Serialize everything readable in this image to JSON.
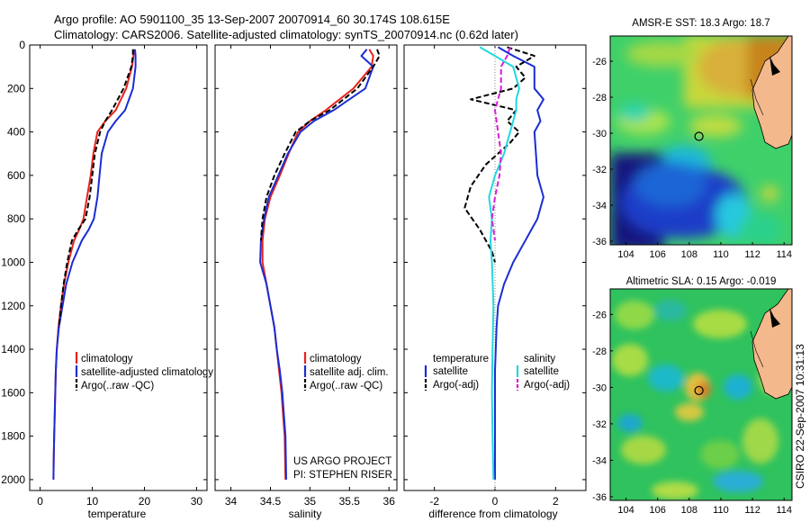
{
  "title_line1": "Argo profile: AO 5901100_35 13-Sep-2007 20070914_60 30.174S 108.615E",
  "title_line2": "Climatology: CARS2006. Satellite-adjusted climatology: synTS_20070914.nc (0.62d later)",
  "side_label": "CSIRO 22-Sep-2007 10:31:13",
  "credit_line1": "US ARGO PROJECT",
  "credit_line2": "PI: STEPHEN RISER",
  "colors": {
    "climatology": "#e8231c",
    "satellite": "#1a2dd4",
    "argo": "#000000",
    "satellite_sal": "#22d8df",
    "argo_sal_adj": "#d61fd6"
  },
  "chart_data": [
    {
      "type": "line",
      "panel": "temperature",
      "xlabel": "temperature",
      "ylabel": "",
      "xlim": [
        -2,
        32
      ],
      "ylim": [
        2050,
        0
      ],
      "xticks": [
        0,
        10,
        20,
        30
      ],
      "yticks": [
        0,
        200,
        400,
        600,
        800,
        1000,
        1200,
        1400,
        1600,
        1800,
        2000
      ],
      "legend": [
        "climatology",
        "satellite-adjusted climatology",
        "Argo(..raw -QC)"
      ],
      "series": [
        {
          "name": "climatology",
          "style": "solid",
          "color": "#e8231c",
          "x": [
            18.0,
            17.9,
            17.6,
            16.5,
            14.5,
            12.5,
            11.0,
            10.2,
            9.7,
            9.0,
            8.3,
            7.5,
            6.5,
            5.4,
            4.6,
            4.0,
            3.5,
            3.2,
            3.0,
            2.9,
            2.8,
            2.7,
            2.6,
            2.55
          ],
          "y": [
            20,
            50,
            100,
            200,
            300,
            350,
            400,
            500,
            600,
            700,
            800,
            850,
            900,
            1000,
            1100,
            1200,
            1300,
            1400,
            1500,
            1600,
            1700,
            1800,
            1900,
            2000
          ]
        },
        {
          "name": "satellite-adjusted climatology",
          "style": "solid",
          "color": "#1a2dd4",
          "x": [
            18.2,
            18.3,
            18.3,
            17.8,
            16.3,
            14.5,
            13.0,
            11.8,
            11.4,
            11.0,
            10.3,
            9.3,
            8.0,
            6.2,
            5.0,
            4.3,
            3.6,
            3.2,
            3.0,
            2.9,
            2.8,
            2.7,
            2.6,
            2.55
          ],
          "y": [
            20,
            50,
            100,
            200,
            300,
            350,
            400,
            500,
            600,
            700,
            800,
            850,
            900,
            1000,
            1100,
            1200,
            1300,
            1400,
            1500,
            1600,
            1700,
            1800,
            1900,
            2000
          ]
        },
        {
          "name": "Argo(..raw -QC)",
          "style": "dashed",
          "color": "#000000",
          "x": [
            17.8,
            17.8,
            17.5,
            16.0,
            13.8,
            12.5,
            11.5,
            10.5,
            10.0,
            9.5,
            8.7,
            7.3,
            6.1,
            5.2,
            4.5,
            4.0,
            3.6
          ],
          "y": [
            20,
            50,
            100,
            200,
            300,
            350,
            400,
            500,
            600,
            700,
            800,
            850,
            900,
            1000,
            1100,
            1200,
            1300
          ]
        }
      ]
    },
    {
      "type": "line",
      "panel": "salinity",
      "xlabel": "salinity",
      "ylabel": "",
      "xlim": [
        33.8,
        36.1
      ],
      "ylim": [
        2050,
        0
      ],
      "xticks": [
        34,
        34.5,
        35,
        35.5,
        36
      ],
      "yticks": [
        0,
        200,
        400,
        600,
        800,
        1000,
        1200,
        1400,
        1600,
        1800,
        2000
      ],
      "legend": [
        "climatology",
        "satellite adj. clim.",
        "Argo(..raw -QC)"
      ],
      "series": [
        {
          "name": "climatology",
          "style": "solid",
          "color": "#e8231c",
          "x": [
            35.75,
            35.8,
            35.78,
            35.55,
            35.2,
            35.0,
            34.85,
            34.73,
            34.62,
            34.5,
            34.43,
            34.4,
            34.4,
            34.45,
            34.5,
            34.55,
            34.58,
            34.61,
            34.64,
            34.66,
            34.68,
            34.69
          ],
          "y": [
            20,
            50,
            100,
            200,
            300,
            350,
            400,
            500,
            600,
            700,
            800,
            900,
            1000,
            1100,
            1200,
            1300,
            1400,
            1500,
            1600,
            1700,
            1800,
            2000
          ]
        },
        {
          "name": "satellite adj. clim.",
          "style": "solid",
          "color": "#1a2dd4",
          "x": [
            35.72,
            35.65,
            35.8,
            35.7,
            35.3,
            35.05,
            34.88,
            34.72,
            34.6,
            34.48,
            34.42,
            34.38,
            34.37,
            34.45,
            34.5,
            34.55,
            34.58,
            34.62,
            34.65,
            34.67,
            34.69,
            34.7
          ],
          "y": [
            20,
            50,
            100,
            200,
            300,
            350,
            400,
            500,
            600,
            700,
            800,
            900,
            1000,
            1100,
            1200,
            1300,
            1400,
            1500,
            1600,
            1700,
            1800,
            2000
          ]
        },
        {
          "name": "Argo(..raw -QC)",
          "style": "dashed",
          "color": "#000000",
          "x": [
            35.85,
            35.88,
            35.8,
            35.6,
            35.25,
            35.0,
            34.82,
            34.68,
            34.55,
            34.45,
            34.4,
            34.38
          ],
          "y": [
            20,
            50,
            100,
            200,
            300,
            350,
            400,
            500,
            600,
            700,
            800,
            900
          ]
        }
      ]
    },
    {
      "type": "line",
      "panel": "difference",
      "xlabel": "difference from climatology",
      "ylabel": "",
      "xlim": [
        -3,
        3
      ],
      "ylim": [
        2050,
        0
      ],
      "xticks": [
        -2,
        0,
        2
      ],
      "yticks": [
        0,
        200,
        400,
        600,
        800,
        1000,
        1200,
        1400,
        1600,
        1800,
        2000
      ],
      "legend_columns": [
        "temperature",
        "salinity"
      ],
      "legend": [
        "satellite",
        "Argo(-adj)",
        "satellite",
        "Argo(-adj)"
      ],
      "series": [
        {
          "name": "satellite",
          "group": "temperature",
          "style": "solid",
          "color": "#1a2dd4",
          "x": [
            0.1,
            0.6,
            1.3,
            1.3,
            1.6,
            1.4,
            1.5,
            1.3,
            1.35,
            1.4,
            1.6,
            1.4,
            1.0,
            0.6,
            0.3,
            0.1,
            0.05,
            0.0,
            0.0
          ],
          "y": [
            10,
            50,
            100,
            200,
            250,
            300,
            350,
            400,
            500,
            600,
            700,
            800,
            900,
            1000,
            1100,
            1200,
            1300,
            1500,
            2000
          ]
        },
        {
          "name": "Argo(-adj)",
          "group": "temperature",
          "style": "dashed",
          "color": "#000000",
          "x": [
            0.4,
            1.3,
            0.7,
            1.0,
            0.6,
            -0.8,
            0.7,
            0.4,
            0.8,
            0.5,
            -0.3,
            -0.8,
            -1.0,
            -0.5,
            -0.1,
            0.0
          ],
          "y": [
            10,
            50,
            100,
            150,
            200,
            250,
            300,
            350,
            400,
            450,
            550,
            650,
            750,
            850,
            950,
            1000
          ]
        },
        {
          "name": "satellite",
          "group": "salinity",
          "style": "solid",
          "color": "#22d8df",
          "x": [
            -0.5,
            0.0,
            0.6,
            0.8,
            0.7,
            0.7,
            0.5,
            0.3,
            0.0,
            -0.2,
            -0.1,
            -0.15,
            -0.1,
            -0.05,
            -0.08,
            -0.1,
            -0.08,
            -0.05
          ],
          "y": [
            10,
            50,
            100,
            200,
            250,
            300,
            400,
            500,
            600,
            700,
            800,
            900,
            1000,
            1200,
            1400,
            1600,
            1800,
            2000
          ]
        },
        {
          "name": "Argo(-adj)",
          "group": "salinity",
          "style": "dashed",
          "color": "#d61fd6",
          "x": [
            0.5,
            0.4,
            0.2,
            0.2,
            0.0,
            0.1,
            0.2,
            0.15,
            0.0,
            -0.1,
            0.0
          ],
          "y": [
            10,
            50,
            100,
            200,
            300,
            400,
            500,
            600,
            700,
            800,
            900
          ]
        }
      ]
    },
    {
      "type": "heatmap",
      "panel": "sst-map",
      "title": "AMSR-E SST: 18.3 Argo: 18.7",
      "xlim": [
        103,
        114.5
      ],
      "ylim": [
        -36.2,
        -24.6
      ],
      "xticks": [
        104,
        106,
        108,
        110,
        112,
        114
      ],
      "yticks": [
        -26,
        -28,
        -30,
        -32,
        -34,
        -36
      ],
      "argo_position": {
        "lon": 108.615,
        "lat": -30.174
      }
    },
    {
      "type": "heatmap",
      "panel": "sla-map",
      "title": "Altimetric SLA: 0.15 Argo: -0.019",
      "xlim": [
        103,
        114.5
      ],
      "ylim": [
        -36.2,
        -24.6
      ],
      "xticks": [
        104,
        106,
        108,
        110,
        112,
        114
      ],
      "yticks": [
        -26,
        -28,
        -30,
        -32,
        -34,
        -36
      ],
      "argo_position": {
        "lon": 108.615,
        "lat": -30.174
      }
    }
  ]
}
